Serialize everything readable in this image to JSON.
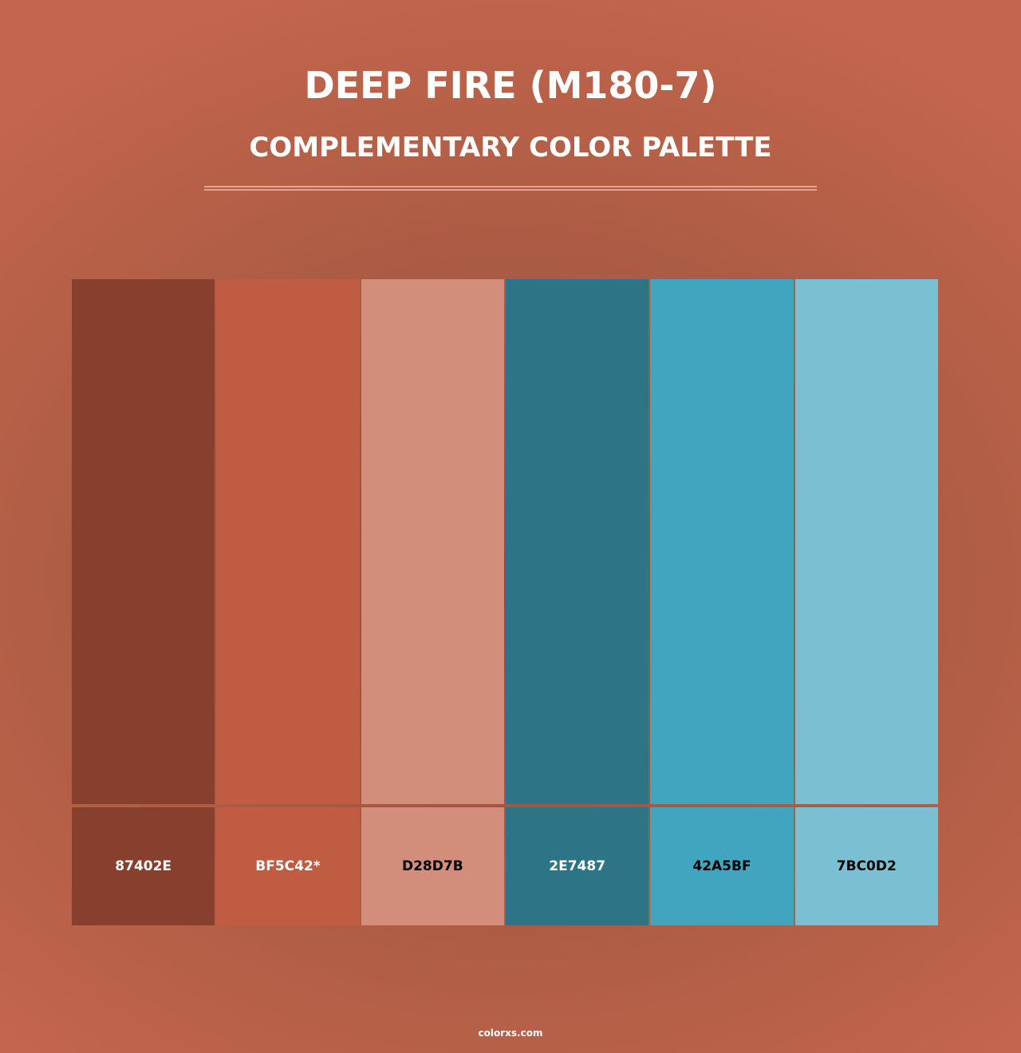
{
  "header": {
    "title": "DEEP FIRE (M180-7)",
    "subtitle": "COMPLEMENTARY COLOR PALETTE"
  },
  "swatches": [
    {
      "hex": "#87402E",
      "label": "87402E",
      "text_color": "#ffffff"
    },
    {
      "hex": "#BF5C42",
      "label": "BF5C42*",
      "text_color": "#ffffff"
    },
    {
      "hex": "#D28D7B",
      "label": "D28D7B",
      "text_color": "#000000"
    },
    {
      "hex": "#2E7487",
      "label": "2E7487",
      "text_color": "#ffffff"
    },
    {
      "hex": "#42A5BF",
      "label": "42A5BF",
      "text_color": "#000000"
    },
    {
      "hex": "#7BC0D2",
      "label": "7BC0D2",
      "text_color": "#000000"
    }
  ],
  "footer": {
    "brand": "colorxs.com"
  }
}
